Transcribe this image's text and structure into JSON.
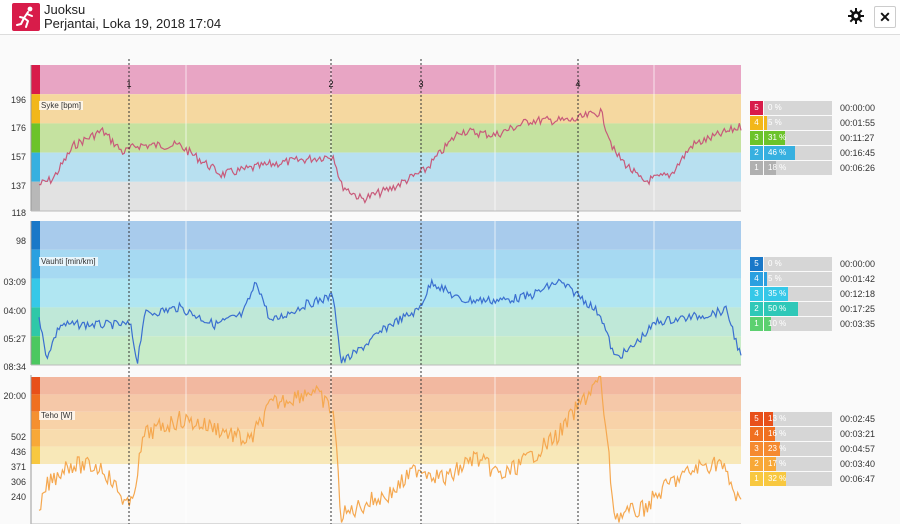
{
  "header": {
    "title": "Juoksu",
    "subtitle": "Perjantai, Loka 19, 2018 17:04"
  },
  "markers": [
    "1",
    "2",
    "3",
    "4"
  ],
  "panels": [
    {
      "name": "heart-rate",
      "title": "Syke [bpm]",
      "ylabels": [
        "196",
        "176",
        "157",
        "137",
        "118",
        "98"
      ],
      "zone_colors": [
        "#e8a5c4",
        "#f5d8a0",
        "#c5e2a0",
        "#b8e0f0",
        "#e2e2e2"
      ],
      "strip_colors": [
        "#d81c4a",
        "#f2b71a",
        "#6cc32a",
        "#37b0e0",
        "#b8b8b8"
      ],
      "line_color": "#c85a7a",
      "zones": [
        {
          "num": "5",
          "pct": "0 %",
          "value": 0,
          "time": "00:00:00",
          "color": "#d81c4a"
        },
        {
          "num": "4",
          "pct": "5 %",
          "value": 5,
          "time": "00:01:55",
          "color": "#f2b71a"
        },
        {
          "num": "3",
          "pct": "31 %",
          "value": 31,
          "time": "00:11:27",
          "color": "#6cc32a"
        },
        {
          "num": "2",
          "pct": "46 %",
          "value": 46,
          "time": "00:16:45",
          "color": "#37b0e0"
        },
        {
          "num": "1",
          "pct": "18 %",
          "value": 18,
          "time": "00:06:26",
          "color": "#b0b0b0"
        }
      ]
    },
    {
      "name": "pace",
      "title": "Vauhti [min/km]",
      "ylabels": [
        "03:09",
        "04:00",
        "05:27",
        "08:34",
        "20:00"
      ],
      "zone_colors": [
        "#a8cbec",
        "#a6d9f2",
        "#b0e6f2",
        "#bfe8d8",
        "#c8ecc8"
      ],
      "strip_colors": [
        "#1a78c8",
        "#2aa0e0",
        "#36c8e8",
        "#2fc8a8",
        "#4cc860"
      ],
      "line_color": "#3a6fd0",
      "zones": [
        {
          "num": "5",
          "pct": "0 %",
          "value": 0,
          "time": "00:00:00",
          "color": "#1a78c8"
        },
        {
          "num": "4",
          "pct": "5 %",
          "value": 5,
          "time": "00:01:42",
          "color": "#2aa0e0"
        },
        {
          "num": "3",
          "pct": "35 %",
          "value": 35,
          "time": "00:12:18",
          "color": "#36c8e8"
        },
        {
          "num": "2",
          "pct": "50 %",
          "value": 50,
          "time": "00:17:25",
          "color": "#2fc8b8"
        },
        {
          "num": "1",
          "pct": "10 %",
          "value": 10,
          "time": "00:03:35",
          "color": "#5cd070"
        }
      ]
    },
    {
      "name": "power",
      "title": "Teho [W]",
      "ylabels": [
        "502",
        "436",
        "371",
        "306",
        "240"
      ],
      "zone_colors": [
        "#f2b8a0",
        "#f5c8a8",
        "#f8d2a8",
        "#f8dcae",
        "#f8e8b8"
      ],
      "strip_colors": [
        "#e8501a",
        "#f07020",
        "#f59030",
        "#f8a838",
        "#f8c840"
      ],
      "line_color": "#f5a850",
      "zones": [
        {
          "num": "5",
          "pct": "13 %",
          "value": 13,
          "time": "00:02:45",
          "color": "#e8501a"
        },
        {
          "num": "4",
          "pct": "16 %",
          "value": 16,
          "time": "00:03:21",
          "color": "#f07020"
        },
        {
          "num": "3",
          "pct": "23 %",
          "value": 23,
          "time": "00:04:57",
          "color": "#f58a30"
        },
        {
          "num": "2",
          "pct": "17 %",
          "value": 17,
          "time": "00:03:40",
          "color": "#f8a838"
        },
        {
          "num": "1",
          "pct": "32 %",
          "value": 32,
          "time": "00:06:47",
          "color": "#f8c840"
        }
      ]
    }
  ]
}
